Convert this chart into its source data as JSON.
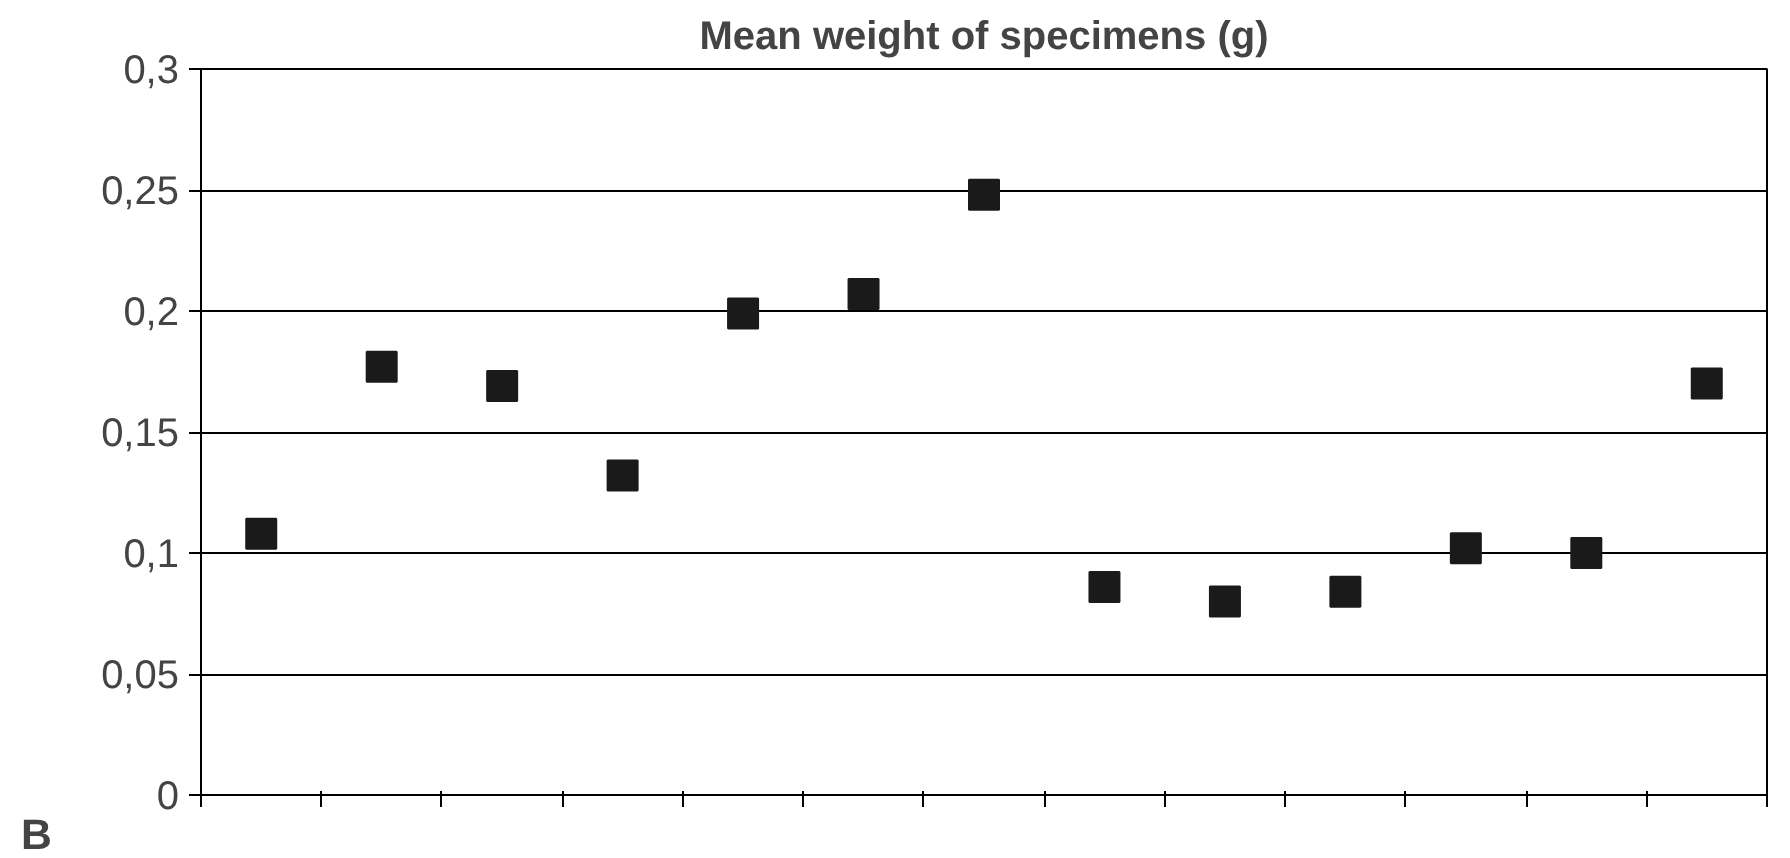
{
  "chart_data": {
    "type": "scatter",
    "title": "Mean weight of specimens (g)",
    "categories": [
      null,
      null,
      null,
      null,
      null,
      null,
      null,
      null,
      null,
      null,
      null,
      null,
      null
    ],
    "series": [
      {
        "color": "#1a1a1a",
        "values": [
          0.108,
          0.177,
          0.169,
          0.132,
          0.199,
          0.207,
          0.248,
          0.086,
          0.08,
          0.084,
          0.102,
          0.1,
          0.17
        ]
      }
    ],
    "ylim": [
      0,
      0.3
    ],
    "yticks": [
      {
        "value": 0,
        "label": "0"
      },
      {
        "value": 0.05,
        "label": "0,05"
      },
      {
        "value": 0.1,
        "label": "0,1"
      },
      {
        "value": 0.15,
        "label": "0,15"
      },
      {
        "value": 0.2,
        "label": "0,2"
      },
      {
        "value": 0.25,
        "label": "0,25"
      },
      {
        "value": 0.3,
        "label": "0,3"
      }
    ],
    "grid": "y",
    "marker": "square",
    "tick_labels": "y",
    "annotations": [
      "B"
    ]
  }
}
